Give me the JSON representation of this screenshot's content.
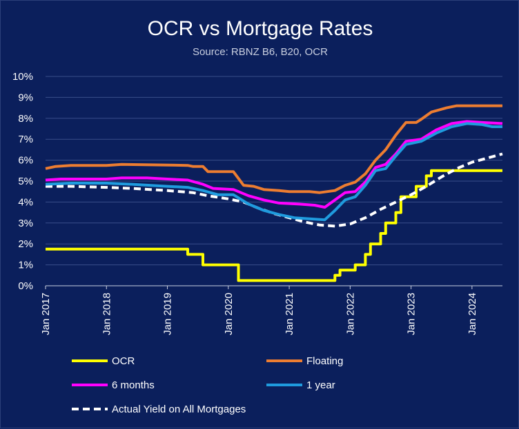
{
  "chart_data": {
    "type": "line",
    "title": "OCR vs Mortgage Rates",
    "subtitle": "Source: RBNZ B6, B20, OCR",
    "x_start": "2017-01",
    "x_end": "2024-07",
    "x_tick_labels": [
      "Jan 2017",
      "Jan 2018",
      "Jan 2019",
      "Jan 2020",
      "Jan 2021",
      "Jan 2022",
      "Jan 2023",
      "Jan 2024"
    ],
    "ylim": [
      0,
      10
    ],
    "y_tick_labels": [
      "0%",
      "1%",
      "2%",
      "3%",
      "4%",
      "5%",
      "6%",
      "7%",
      "8%",
      "9%",
      "10%"
    ],
    "grid": true,
    "legend_position": "bottom",
    "series": [
      {
        "name": "OCR",
        "color": "#ffff00",
        "dash": false,
        "points": [
          [
            "2017-01",
            1.75
          ],
          [
            "2019-05",
            1.75
          ],
          [
            "2019-05",
            1.5
          ],
          [
            "2019-08",
            1.5
          ],
          [
            "2019-08",
            1.0
          ],
          [
            "2020-03",
            1.0
          ],
          [
            "2020-03",
            0.25
          ],
          [
            "2021-10",
            0.25
          ],
          [
            "2021-10",
            0.5
          ],
          [
            "2021-11",
            0.5
          ],
          [
            "2021-11",
            0.75
          ],
          [
            "2022-02",
            0.75
          ],
          [
            "2022-02",
            1.0
          ],
          [
            "2022-04",
            1.0
          ],
          [
            "2022-04",
            1.5
          ],
          [
            "2022-05",
            1.5
          ],
          [
            "2022-05",
            2.0
          ],
          [
            "2022-07",
            2.0
          ],
          [
            "2022-07",
            2.5
          ],
          [
            "2022-08",
            2.5
          ],
          [
            "2022-08",
            3.0
          ],
          [
            "2022-10",
            3.0
          ],
          [
            "2022-10",
            3.5
          ],
          [
            "2022-11",
            3.5
          ],
          [
            "2022-11",
            4.25
          ],
          [
            "2023-02",
            4.25
          ],
          [
            "2023-02",
            4.75
          ],
          [
            "2023-04",
            4.75
          ],
          [
            "2023-04",
            5.25
          ],
          [
            "2023-05",
            5.25
          ],
          [
            "2023-05",
            5.5
          ],
          [
            "2024-07",
            5.5
          ]
        ]
      },
      {
        "name": "Floating",
        "color": "#ed7d31",
        "dash": false,
        "points": [
          [
            "2017-01",
            5.6
          ],
          [
            "2017-03",
            5.7
          ],
          [
            "2017-06",
            5.75
          ],
          [
            "2018-01",
            5.75
          ],
          [
            "2018-04",
            5.8
          ],
          [
            "2019-05",
            5.75
          ],
          [
            "2019-06",
            5.7
          ],
          [
            "2019-08",
            5.7
          ],
          [
            "2019-09",
            5.45
          ],
          [
            "2020-02",
            5.45
          ],
          [
            "2020-04",
            4.8
          ],
          [
            "2020-06",
            4.75
          ],
          [
            "2020-08",
            4.6
          ],
          [
            "2020-11",
            4.55
          ],
          [
            "2021-01",
            4.5
          ],
          [
            "2021-05",
            4.5
          ],
          [
            "2021-07",
            4.45
          ],
          [
            "2021-10",
            4.55
          ],
          [
            "2021-12",
            4.8
          ],
          [
            "2022-02",
            4.95
          ],
          [
            "2022-04",
            5.35
          ],
          [
            "2022-06",
            6.0
          ],
          [
            "2022-08",
            6.5
          ],
          [
            "2022-10",
            7.2
          ],
          [
            "2022-12",
            7.8
          ],
          [
            "2023-02",
            7.8
          ],
          [
            "2023-03",
            7.95
          ],
          [
            "2023-05",
            8.3
          ],
          [
            "2023-08",
            8.5
          ],
          [
            "2023-10",
            8.6
          ],
          [
            "2024-07",
            8.6
          ]
        ]
      },
      {
        "name": "6 months",
        "color": "#ff00ff",
        "dash": false,
        "points": [
          [
            "2017-01",
            5.05
          ],
          [
            "2017-04",
            5.1
          ],
          [
            "2018-01",
            5.1
          ],
          [
            "2018-04",
            5.15
          ],
          [
            "2018-09",
            5.15
          ],
          [
            "2019-01",
            5.1
          ],
          [
            "2019-05",
            5.05
          ],
          [
            "2019-08",
            4.85
          ],
          [
            "2019-10",
            4.65
          ],
          [
            "2020-02",
            4.6
          ],
          [
            "2020-05",
            4.3
          ],
          [
            "2020-08",
            4.1
          ],
          [
            "2020-11",
            3.95
          ],
          [
            "2021-03",
            3.9
          ],
          [
            "2021-06",
            3.85
          ],
          [
            "2021-08",
            3.75
          ],
          [
            "2021-10",
            4.1
          ],
          [
            "2021-12",
            4.45
          ],
          [
            "2022-02",
            4.5
          ],
          [
            "2022-04",
            4.95
          ],
          [
            "2022-06",
            5.65
          ],
          [
            "2022-08",
            5.8
          ],
          [
            "2022-10",
            6.3
          ],
          [
            "2022-12",
            6.9
          ],
          [
            "2023-03",
            7.0
          ],
          [
            "2023-06",
            7.45
          ],
          [
            "2023-09",
            7.75
          ],
          [
            "2023-12",
            7.85
          ],
          [
            "2024-03",
            7.8
          ],
          [
            "2024-07",
            7.75
          ]
        ]
      },
      {
        "name": "1 year",
        "color": "#1f9bde",
        "dash": false,
        "points": [
          [
            "2017-01",
            4.85
          ],
          [
            "2017-06",
            4.9
          ],
          [
            "2018-01",
            4.9
          ],
          [
            "2018-06",
            4.85
          ],
          [
            "2019-01",
            4.75
          ],
          [
            "2019-05",
            4.7
          ],
          [
            "2019-08",
            4.55
          ],
          [
            "2019-11",
            4.35
          ],
          [
            "2020-02",
            4.35
          ],
          [
            "2020-05",
            3.9
          ],
          [
            "2020-08",
            3.6
          ],
          [
            "2020-11",
            3.4
          ],
          [
            "2021-02",
            3.25
          ],
          [
            "2021-05",
            3.2
          ],
          [
            "2021-08",
            3.15
          ],
          [
            "2021-10",
            3.6
          ],
          [
            "2021-12",
            4.1
          ],
          [
            "2022-02",
            4.25
          ],
          [
            "2022-04",
            4.8
          ],
          [
            "2022-06",
            5.5
          ],
          [
            "2022-08",
            5.6
          ],
          [
            "2022-10",
            6.2
          ],
          [
            "2022-12",
            6.75
          ],
          [
            "2023-03",
            6.9
          ],
          [
            "2023-06",
            7.3
          ],
          [
            "2023-09",
            7.6
          ],
          [
            "2023-12",
            7.75
          ],
          [
            "2024-03",
            7.7
          ],
          [
            "2024-05",
            7.6
          ],
          [
            "2024-07",
            7.6
          ]
        ]
      },
      {
        "name": "Actual Yield on All Mortgages",
        "color": "#ffffff",
        "dash": true,
        "points": [
          [
            "2017-01",
            4.75
          ],
          [
            "2017-06",
            4.75
          ],
          [
            "2018-01",
            4.7
          ],
          [
            "2018-06",
            4.65
          ],
          [
            "2019-01",
            4.55
          ],
          [
            "2019-06",
            4.45
          ],
          [
            "2019-09",
            4.3
          ],
          [
            "2020-01",
            4.15
          ],
          [
            "2020-04",
            4.0
          ],
          [
            "2020-07",
            3.7
          ],
          [
            "2020-10",
            3.45
          ],
          [
            "2021-01",
            3.25
          ],
          [
            "2021-04",
            3.05
          ],
          [
            "2021-07",
            2.9
          ],
          [
            "2021-10",
            2.85
          ],
          [
            "2022-01",
            2.95
          ],
          [
            "2022-04",
            3.25
          ],
          [
            "2022-07",
            3.65
          ],
          [
            "2022-10",
            4.0
          ],
          [
            "2023-01",
            4.35
          ],
          [
            "2023-04",
            4.75
          ],
          [
            "2023-07",
            5.2
          ],
          [
            "2023-10",
            5.6
          ],
          [
            "2024-01",
            5.9
          ],
          [
            "2024-04",
            6.1
          ],
          [
            "2024-07",
            6.3
          ]
        ]
      }
    ]
  }
}
